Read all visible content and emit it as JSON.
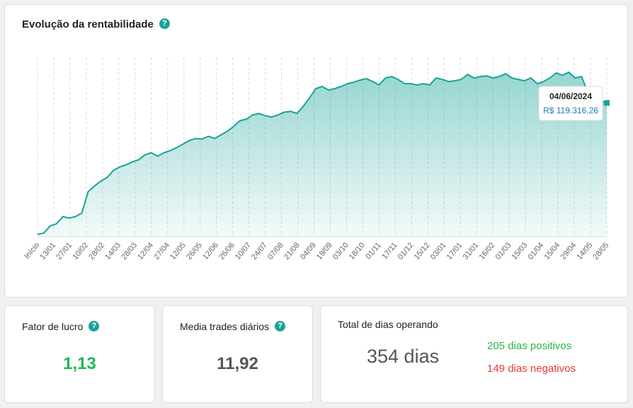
{
  "chart_card": {
    "title": "Evolução da rentabilidade",
    "help_icon": "question-circle-icon"
  },
  "tooltip": {
    "date": "04/06/2024",
    "value": "R$ 119.316,26"
  },
  "chart_data": {
    "type": "area",
    "title": "Evolução da rentabilidade",
    "xlabel": "",
    "ylabel": "",
    "x_tick_labels": [
      "Início",
      "13/01",
      "27/01",
      "10/02",
      "28/02",
      "14/03",
      "28/03",
      "12/04",
      "27/04",
      "12/05",
      "26/05",
      "12/06",
      "26/06",
      "10/07",
      "24/07",
      "07/08",
      "21/08",
      "04/09",
      "19/09",
      "03/10",
      "18/10",
      "01/11",
      "17/11",
      "01/12",
      "15/12",
      "03/01",
      "17/01",
      "31/01",
      "16/02",
      "01/03",
      "15/03",
      "01/04",
      "15/04",
      "29/04",
      "14/05",
      "28/05"
    ],
    "ylim": [
      0,
      160000
    ],
    "grid": "vertical",
    "series": [
      {
        "name": "Rentabilidade",
        "color": "#17a398",
        "values": [
          1900,
          3200,
          9500,
          11400,
          17800,
          16500,
          17800,
          21000,
          40000,
          45100,
          49500,
          52700,
          59100,
          62200,
          64100,
          66700,
          68600,
          73000,
          74900,
          71800,
          74900,
          76800,
          79400,
          82600,
          85700,
          87600,
          87000,
          89500,
          87600,
          90800,
          94000,
          98400,
          103500,
          104800,
          108600,
          109900,
          107900,
          106700,
          108600,
          111100,
          111800,
          109900,
          116200,
          123800,
          132100,
          134000,
          130800,
          132100,
          134000,
          136500,
          137800,
          139700,
          141000,
          138400,
          135300,
          141600,
          142900,
          140300,
          136500,
          136500,
          135300,
          136500,
          135300,
          141600,
          140300,
          138400,
          139100,
          140300,
          144800,
          141600,
          142900,
          143500,
          141600,
          142900,
          145400,
          141600,
          140300,
          139100,
          141600,
          136500,
          138400,
          141600,
          146100,
          144100,
          146700,
          141600,
          142900,
          128900,
          122600,
          120700,
          119316
        ]
      }
    ]
  },
  "cards": {
    "profit_factor": {
      "label": "Fator de lucro",
      "value": "1,13",
      "color": "#1db954"
    },
    "daily_trades": {
      "label": "Media trades diários",
      "value": "11,92"
    },
    "days": {
      "label": "Total de dias operando",
      "value": "354 dias",
      "positive": "205 dias positivos",
      "negative": "149 dias negativos",
      "positive_color": "#2bb34a",
      "negative_color": "#e53935"
    }
  }
}
